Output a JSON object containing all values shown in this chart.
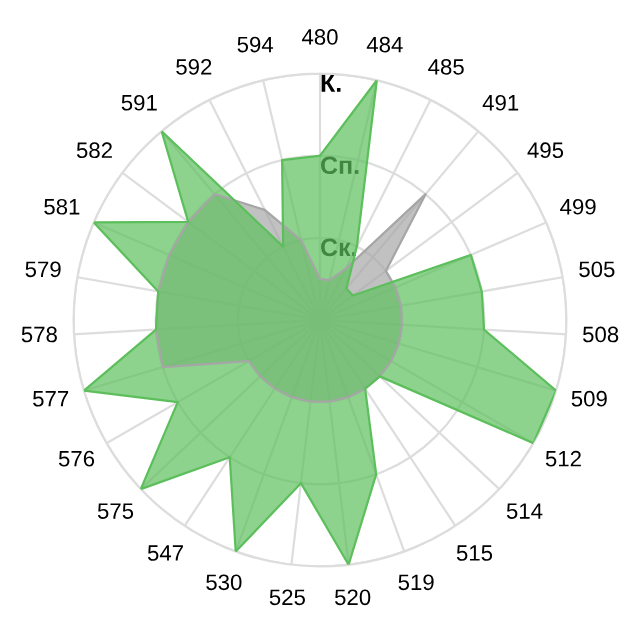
{
  "chart_data": {
    "type": "radar",
    "categories": [
      "480",
      "484",
      "485",
      "491",
      "495",
      "499",
      "505",
      "508",
      "509",
      "512",
      "514",
      "515",
      "519",
      "520",
      "525",
      "530",
      "547",
      "575",
      "576",
      "577",
      "578",
      "579",
      "581",
      "582",
      "591",
      "592",
      "594"
    ],
    "series": [
      {
        "color": "#a6a6a6",
        "values": [
          0.5,
          0.5,
          0.7,
          2.0,
          1.0,
          1.0,
          1.0,
          1.0,
          1.0,
          1.0,
          1.0,
          1.0,
          1.0,
          1.0,
          1.0,
          1.0,
          1.0,
          1.0,
          1.0,
          2.0,
          2.0,
          2.0,
          2.0,
          2.0,
          2.0,
          1.5,
          1.0
        ]
      },
      {
        "color": "#5cbf5c",
        "values": [
          2.0,
          3.0,
          1.0,
          0.5,
          0.5,
          2.0,
          2.0,
          2.0,
          3.0,
          3.0,
          1.0,
          1.0,
          2.0,
          3.0,
          2.0,
          3.0,
          2.0,
          3.0,
          2.0,
          3.0,
          2.0,
          2.0,
          3.0,
          2.0,
          3.0,
          1.0,
          2.0
        ]
      }
    ],
    "ylim": [
      0,
      3
    ],
    "yticks": [
      {
        "value": 1,
        "label": "Ск."
      },
      {
        "value": 2,
        "label": "Сп."
      },
      {
        "value": 3,
        "label": "К."
      }
    ],
    "grid": true,
    "marker": "none",
    "line_style": "solid"
  }
}
